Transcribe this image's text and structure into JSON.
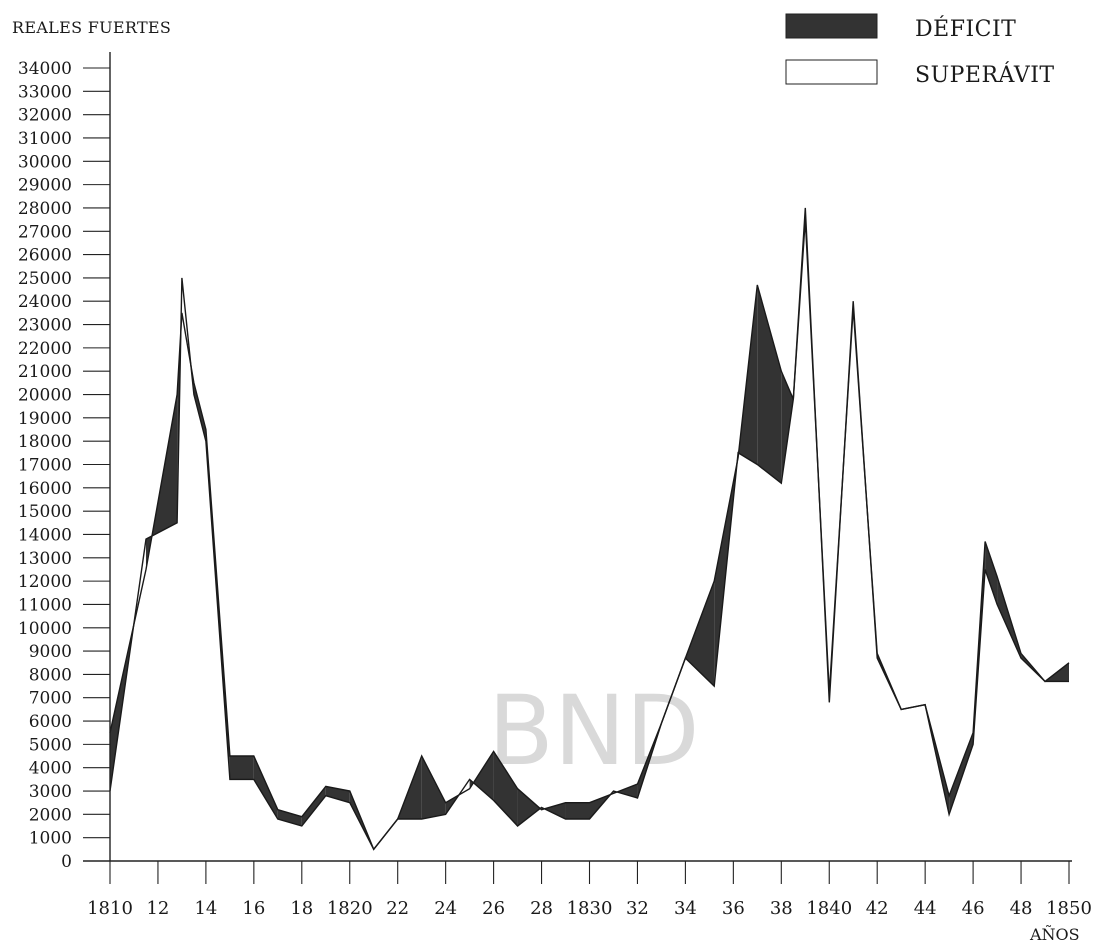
{
  "chart_data": {
    "type": "line",
    "ylabel": "REALES FUERTES",
    "xlabel": "AÑOS",
    "ylim": [
      0,
      34000
    ],
    "xlim": [
      1810,
      1850
    ],
    "x_tick_values": [
      1810,
      1812,
      1814,
      1816,
      1818,
      1820,
      1822,
      1824,
      1826,
      1828,
      1830,
      1832,
      1834,
      1836,
      1838,
      1840,
      1842,
      1844,
      1846,
      1848,
      1850
    ],
    "x_tick_labels": [
      "1810",
      "12",
      "14",
      "16",
      "18",
      "1820",
      "22",
      "24",
      "26",
      "28",
      "1830",
      "32",
      "34",
      "36",
      "38",
      "1840",
      "42",
      "44",
      "46",
      "48",
      "1850"
    ],
    "y_ticks": [
      0,
      1000,
      2000,
      3000,
      4000,
      5000,
      6000,
      7000,
      8000,
      9000,
      10000,
      11000,
      12000,
      13000,
      14000,
      15000,
      16000,
      17000,
      18000,
      19000,
      20000,
      21000,
      22000,
      23000,
      24000,
      25000,
      26000,
      27000,
      28000,
      29000,
      30000,
      31000,
      32000,
      33000,
      34000
    ],
    "legend": [
      {
        "label": "DÉFICIT",
        "color": "#333333"
      },
      {
        "label": "SUPERÁVIT",
        "color": "#ffffff"
      }
    ],
    "legend_position": "top-right",
    "grid": false,
    "watermark": "BND",
    "series": [
      {
        "x": [
          1810,
          1811.5,
          1812.8,
          1813,
          1813.5,
          1814,
          1815,
          1816,
          1817,
          1818,
          1819,
          1820,
          1821,
          1822,
          1823,
          1824,
          1825,
          1826,
          1827,
          1828,
          1829,
          1830,
          1831,
          1832,
          1833,
          1834,
          1835.2,
          1836.2,
          1837,
          1838,
          1838.5,
          1839,
          1840,
          1841,
          1842,
          1843,
          1844,
          1845,
          1846,
          1846.5,
          1847,
          1848,
          1849,
          1850
        ],
        "values": [
          3000,
          13800,
          14500,
          25000,
          20000,
          18000,
          3500,
          3500,
          1800,
          1500,
          2800,
          2500,
          500,
          1800,
          1800,
          2000,
          3500,
          2600,
          1500,
          2300,
          1800,
          1800,
          3000,
          2700,
          5900,
          8700,
          7500,
          17500,
          17000,
          16200,
          19800,
          28000,
          6800,
          24000,
          8700,
          6500,
          6700,
          2000,
          5000,
          12500,
          11000,
          8700,
          7700,
          7700
        ]
      },
      {
        "x": [
          1810,
          1811.5,
          1812.8,
          1813,
          1813.5,
          1814,
          1815,
          1816,
          1817,
          1818,
          1819,
          1820,
          1821,
          1822,
          1823,
          1824,
          1825,
          1826,
          1827,
          1828,
          1829,
          1830,
          1831,
          1832,
          1833,
          1834,
          1835.2,
          1836.2,
          1837,
          1838,
          1838.5,
          1839,
          1840,
          1841,
          1842,
          1843,
          1844,
          1845,
          1846,
          1846.5,
          1847,
          1848,
          1849,
          1850
        ],
        "values": [
          5500,
          12500,
          20000,
          23500,
          20500,
          18500,
          4500,
          4500,
          2200,
          1900,
          3200,
          3000,
          500,
          1800,
          4500,
          2500,
          3100,
          4700,
          3100,
          2200,
          2500,
          2500,
          2900,
          3300,
          5900,
          8700,
          12000,
          17300,
          24700,
          21000,
          19800,
          27500,
          7200,
          23700,
          8900,
          6500,
          6700,
          2800,
          5500,
          13700,
          12200,
          8900,
          7700,
          8500
        ]
      }
    ]
  }
}
